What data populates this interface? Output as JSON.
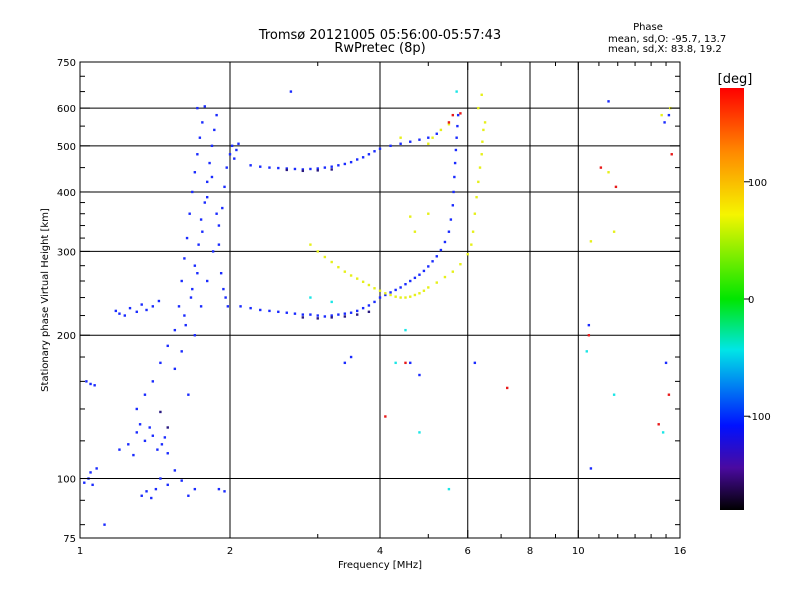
{
  "chart_data": {
    "type": "scatter",
    "title": "Tromsø 20121005 05:56:00-05:57:43",
    "subtitle": "RwPretec (8p)",
    "xlabel": "Frequency [MHz]",
    "ylabel": "Stationary phase Virtual Height [km]",
    "x_scale": "log",
    "y_scale": "log",
    "xlim": [
      1,
      16
    ],
    "ylim": [
      75,
      750
    ],
    "x_ticks": [
      1,
      2,
      4,
      6,
      8,
      10,
      16
    ],
    "y_ticks": [
      75,
      100,
      200,
      300,
      400,
      500,
      600,
      750
    ],
    "grid": true,
    "legend": {
      "heading": "Phase",
      "lines": [
        "mean, sd,O: -95.7, 13.7",
        "mean, sd,X:  83.8, 19.2"
      ]
    },
    "colorbar": {
      "label": "[deg]",
      "ticks": [
        100,
        0,
        -100
      ],
      "range": [
        -180,
        180
      ]
    },
    "series": [
      {
        "color": "#1a2bff",
        "points": [
          [
            1.02,
            98
          ],
          [
            1.04,
            100
          ],
          [
            1.05,
            103
          ],
          [
            1.06,
            97
          ],
          [
            1.08,
            105
          ],
          [
            1.03,
            160
          ],
          [
            1.05,
            158
          ],
          [
            1.07,
            157
          ],
          [
            1.18,
            225
          ],
          [
            1.2,
            222
          ],
          [
            1.23,
            220
          ],
          [
            1.26,
            228
          ],
          [
            1.3,
            224
          ],
          [
            1.33,
            232
          ],
          [
            1.36,
            226
          ],
          [
            1.4,
            230
          ],
          [
            1.44,
            236
          ],
          [
            1.12,
            80
          ],
          [
            1.2,
            115
          ],
          [
            1.25,
            118
          ],
          [
            1.28,
            112
          ],
          [
            1.3,
            125
          ],
          [
            1.32,
            130
          ],
          [
            1.35,
            120
          ],
          [
            1.38,
            128
          ],
          [
            1.4,
            123
          ],
          [
            1.43,
            115
          ],
          [
            1.46,
            118
          ],
          [
            1.48,
            122
          ],
          [
            1.5,
            113
          ],
          [
            1.33,
            92
          ],
          [
            1.36,
            94
          ],
          [
            1.39,
            91
          ],
          [
            1.42,
            95
          ],
          [
            1.45,
            100
          ],
          [
            1.5,
            97
          ],
          [
            1.55,
            104
          ],
          [
            1.6,
            99
          ],
          [
            1.65,
            92
          ],
          [
            1.7,
            95
          ],
          [
            1.9,
            95
          ],
          [
            1.95,
            94
          ],
          [
            1.3,
            140
          ],
          [
            1.35,
            150
          ],
          [
            1.4,
            160
          ],
          [
            1.45,
            175
          ],
          [
            1.5,
            190
          ],
          [
            1.55,
            205
          ],
          [
            1.58,
            230
          ],
          [
            1.6,
            260
          ],
          [
            1.62,
            290
          ],
          [
            1.64,
            320
          ],
          [
            1.66,
            360
          ],
          [
            1.68,
            400
          ],
          [
            1.7,
            440
          ],
          [
            1.72,
            480
          ],
          [
            1.74,
            520
          ],
          [
            1.76,
            560
          ],
          [
            1.72,
            600
          ],
          [
            1.78,
            605
          ],
          [
            1.55,
            170
          ],
          [
            1.6,
            185
          ],
          [
            1.63,
            210
          ],
          [
            1.67,
            240
          ],
          [
            1.7,
            280
          ],
          [
            1.73,
            310
          ],
          [
            1.75,
            350
          ],
          [
            1.78,
            380
          ],
          [
            1.8,
            420
          ],
          [
            1.82,
            460
          ],
          [
            1.84,
            500
          ],
          [
            1.86,
            540
          ],
          [
            1.88,
            580
          ],
          [
            1.65,
            150
          ],
          [
            1.7,
            200
          ],
          [
            1.75,
            230
          ],
          [
            1.8,
            260
          ],
          [
            1.85,
            300
          ],
          [
            1.9,
            340
          ],
          [
            1.93,
            370
          ],
          [
            1.95,
            410
          ],
          [
            1.97,
            450
          ],
          [
            2.0,
            480
          ],
          [
            2.02,
            500
          ],
          [
            2.04,
            470
          ],
          [
            2.06,
            490
          ],
          [
            2.08,
            505
          ],
          [
            1.62,
            220
          ],
          [
            1.68,
            250
          ],
          [
            1.72,
            270
          ],
          [
            1.76,
            330
          ],
          [
            1.8,
            390
          ],
          [
            1.84,
            430
          ],
          [
            1.88,
            360
          ],
          [
            1.9,
            310
          ],
          [
            1.92,
            270
          ],
          [
            1.94,
            250
          ],
          [
            1.96,
            240
          ],
          [
            1.98,
            230
          ],
          [
            2.1,
            230
          ],
          [
            2.2,
            228
          ],
          [
            2.3,
            226
          ],
          [
            2.4,
            225
          ],
          [
            2.5,
            224
          ],
          [
            2.6,
            223
          ],
          [
            2.7,
            222
          ],
          [
            2.8,
            221
          ],
          [
            2.9,
            221
          ],
          [
            3.0,
            220
          ],
          [
            3.1,
            219
          ],
          [
            3.2,
            220
          ],
          [
            3.3,
            221
          ],
          [
            3.4,
            222
          ],
          [
            3.5,
            223
          ],
          [
            3.6,
            225
          ],
          [
            3.7,
            228
          ],
          [
            3.8,
            231
          ],
          [
            3.9,
            235
          ],
          [
            4.0,
            240
          ],
          [
            2.2,
            455
          ],
          [
            2.3,
            452
          ],
          [
            2.4,
            450
          ],
          [
            2.5,
            449
          ],
          [
            2.6,
            448
          ],
          [
            2.7,
            447
          ],
          [
            2.8,
            446
          ],
          [
            2.9,
            447
          ],
          [
            3.0,
            448
          ],
          [
            3.1,
            450
          ],
          [
            3.2,
            452
          ],
          [
            3.3,
            455
          ],
          [
            3.4,
            458
          ],
          [
            3.5,
            462
          ],
          [
            3.6,
            468
          ],
          [
            3.7,
            473
          ],
          [
            3.8,
            480
          ],
          [
            3.9,
            487
          ],
          [
            4.0,
            493
          ],
          [
            4.2,
            500
          ],
          [
            4.4,
            505
          ],
          [
            4.6,
            510
          ],
          [
            4.8,
            515
          ],
          [
            5.0,
            520
          ],
          [
            5.2,
            530
          ],
          [
            4.1,
            243
          ],
          [
            4.2,
            246
          ],
          [
            4.3,
            249
          ],
          [
            4.4,
            252
          ],
          [
            4.5,
            256
          ],
          [
            4.6,
            260
          ],
          [
            4.7,
            264
          ],
          [
            4.8,
            268
          ],
          [
            4.9,
            273
          ],
          [
            5.0,
            279
          ],
          [
            5.1,
            286
          ],
          [
            5.2,
            293
          ],
          [
            5.3,
            302
          ],
          [
            5.4,
            314
          ],
          [
            5.5,
            330
          ],
          [
            5.55,
            350
          ],
          [
            5.6,
            375
          ],
          [
            5.62,
            400
          ],
          [
            5.64,
            430
          ],
          [
            5.66,
            460
          ],
          [
            5.68,
            490
          ],
          [
            5.7,
            520
          ],
          [
            5.72,
            550
          ],
          [
            5.74,
            580
          ],
          [
            3.4,
            175
          ],
          [
            3.5,
            180
          ],
          [
            4.6,
            175
          ],
          [
            4.8,
            165
          ],
          [
            6.2,
            175
          ],
          [
            10.5,
            210
          ],
          [
            10.6,
            105
          ],
          [
            11.5,
            620
          ],
          [
            14.9,
            560
          ],
          [
            15.0,
            175
          ],
          [
            15.2,
            580
          ],
          [
            2.65,
            650
          ]
        ]
      },
      {
        "color": "#e6f01a",
        "points": [
          [
            2.9,
            310
          ],
          [
            3.0,
            300
          ],
          [
            3.1,
            292
          ],
          [
            3.2,
            285
          ],
          [
            3.3,
            278
          ],
          [
            3.4,
            272
          ],
          [
            3.5,
            267
          ],
          [
            3.6,
            263
          ],
          [
            3.7,
            259
          ],
          [
            3.8,
            255
          ],
          [
            3.9,
            251
          ],
          [
            4.0,
            248
          ],
          [
            4.1,
            245
          ],
          [
            4.2,
            243
          ],
          [
            4.3,
            241
          ],
          [
            4.4,
            240
          ],
          [
            4.5,
            240
          ],
          [
            4.6,
            241
          ],
          [
            4.7,
            243
          ],
          [
            4.8,
            245
          ],
          [
            4.9,
            248
          ],
          [
            5.0,
            252
          ],
          [
            5.2,
            258
          ],
          [
            5.4,
            265
          ],
          [
            5.6,
            272
          ],
          [
            5.8,
            282
          ],
          [
            6.0,
            296
          ],
          [
            6.1,
            310
          ],
          [
            6.15,
            330
          ],
          [
            6.2,
            360
          ],
          [
            6.25,
            390
          ],
          [
            6.3,
            420
          ],
          [
            6.35,
            450
          ],
          [
            6.4,
            480
          ],
          [
            6.42,
            510
          ],
          [
            6.45,
            540
          ],
          [
            6.3,
            600
          ],
          [
            6.4,
            640
          ],
          [
            5.0,
            505
          ],
          [
            5.1,
            520
          ],
          [
            5.3,
            540
          ],
          [
            5.5,
            555
          ],
          [
            4.6,
            355
          ],
          [
            4.7,
            330
          ],
          [
            5.0,
            360
          ],
          [
            4.4,
            520
          ],
          [
            6.5,
            560
          ],
          [
            10.6,
            315
          ],
          [
            11.8,
            330
          ],
          [
            11.5,
            440
          ],
          [
            14.7,
            580
          ],
          [
            15.3,
            600
          ]
        ]
      },
      {
        "color": "#e81a1a",
        "points": [
          [
            4.1,
            135
          ],
          [
            4.5,
            175
          ],
          [
            5.5,
            560
          ],
          [
            5.6,
            580
          ],
          [
            5.8,
            585
          ],
          [
            7.2,
            155
          ],
          [
            11.1,
            450
          ],
          [
            11.9,
            410
          ],
          [
            14.5,
            130
          ],
          [
            15.2,
            150
          ],
          [
            15.4,
            480
          ],
          [
            10.5,
            200
          ]
        ]
      },
      {
        "color": "#1ae6e6",
        "points": [
          [
            4.5,
            205
          ],
          [
            4.3,
            175
          ],
          [
            4.8,
            125
          ],
          [
            5.5,
            95
          ],
          [
            5.7,
            650
          ],
          [
            14.8,
            125
          ],
          [
            11.8,
            150
          ],
          [
            10.4,
            185
          ],
          [
            2.9,
            240
          ],
          [
            3.2,
            235
          ]
        ]
      },
      {
        "color": "#2a1a80",
        "points": [
          [
            2.8,
            218
          ],
          [
            3.0,
            217
          ],
          [
            3.2,
            218
          ],
          [
            3.4,
            219
          ],
          [
            3.6,
            221
          ],
          [
            3.8,
            224
          ],
          [
            2.6,
            445
          ],
          [
            2.8,
            443
          ],
          [
            3.0,
            444
          ],
          [
            3.2,
            446
          ],
          [
            1.5,
            128
          ],
          [
            1.45,
            138
          ]
        ]
      }
    ]
  }
}
